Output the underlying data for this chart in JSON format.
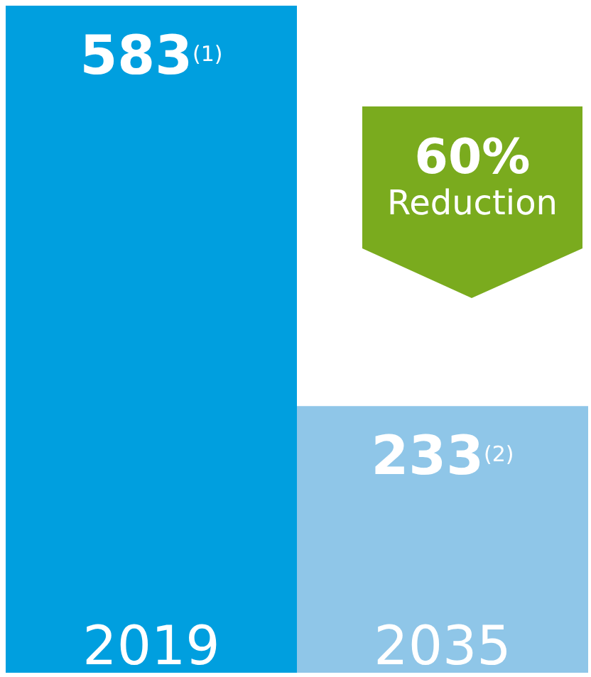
{
  "chart_data": {
    "type": "bar",
    "categories": [
      "2019",
      "2035"
    ],
    "values": [
      583,
      233
    ],
    "colors": [
      "#009fdf",
      "#8fc6e8"
    ],
    "value_labels": [
      "583$^{(1)}$",
      "233$^{(2)}$"
    ],
    "annotations": [
      "60%",
      "Reduction"
    ],
    "grid": false,
    "legend": false
  }
}
